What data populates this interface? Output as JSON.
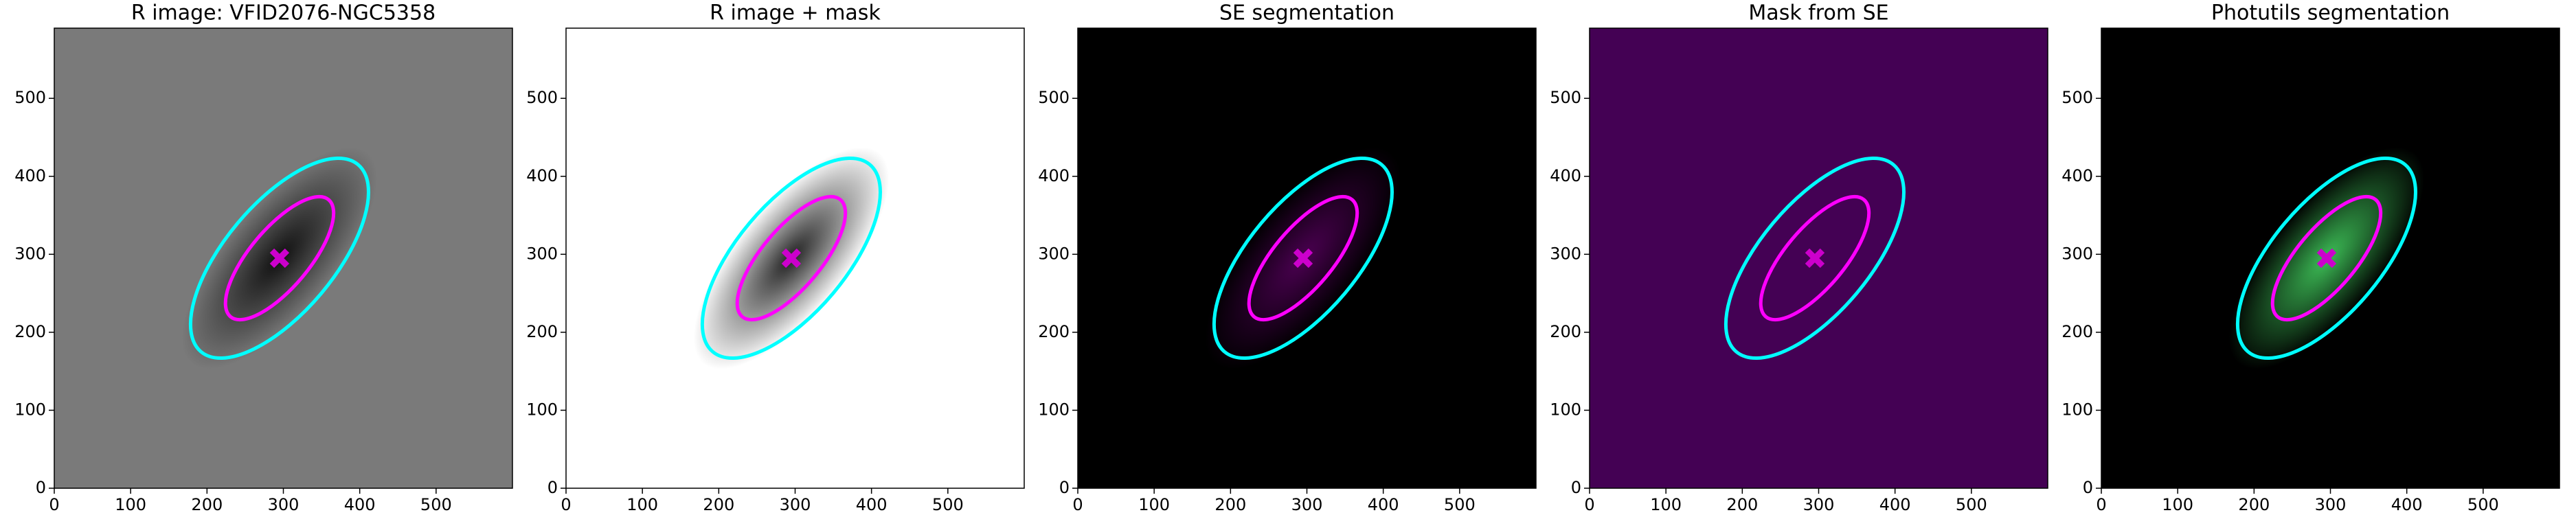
{
  "chart_data": [
    {
      "type": "image",
      "title": "R image: VFID2076-NGC5358",
      "background": "#7a7a7a",
      "glow": "#111111",
      "xlim": [
        0,
        600
      ],
      "ylim": [
        0,
        590
      ],
      "xticks": [
        0,
        100,
        200,
        300,
        400,
        500
      ],
      "yticks": [
        0,
        100,
        200,
        300,
        400,
        500
      ],
      "ellipses": [
        {
          "center": [
            295,
            295
          ],
          "semi_axes": [
            160,
            70
          ],
          "angle": 50,
          "color": "#00ffff"
        },
        {
          "center": [
            295,
            295
          ],
          "semi_axes": [
            100,
            38
          ],
          "angle": 50,
          "color": "#ff00ff"
        }
      ],
      "marker": {
        "x": 295,
        "y": 295,
        "color": "#cc00cc"
      }
    },
    {
      "type": "image",
      "title": "R image + mask",
      "background": "#ffffff",
      "glow": "#222222",
      "xlim": [
        0,
        600
      ],
      "ylim": [
        0,
        590
      ],
      "xticks": [
        0,
        100,
        200,
        300,
        400,
        500
      ],
      "yticks": [
        0,
        100,
        200,
        300,
        400,
        500
      ],
      "ellipses": [
        {
          "center": [
            295,
            295
          ],
          "semi_axes": [
            160,
            70
          ],
          "angle": 50,
          "color": "#00ffff"
        },
        {
          "center": [
            295,
            295
          ],
          "semi_axes": [
            100,
            38
          ],
          "angle": 50,
          "color": "#ff00ff"
        }
      ],
      "marker": {
        "x": 295,
        "y": 295,
        "color": "#cc00cc"
      }
    },
    {
      "type": "image",
      "title": "SE segmentation",
      "background": "#000000",
      "glow": "#4a0050",
      "xlim": [
        0,
        600
      ],
      "ylim": [
        0,
        590
      ],
      "xticks": [
        0,
        100,
        200,
        300,
        400,
        500
      ],
      "yticks": [
        0,
        100,
        200,
        300,
        400,
        500
      ],
      "ellipses": [
        {
          "center": [
            295,
            295
          ],
          "semi_axes": [
            160,
            70
          ],
          "angle": 50,
          "color": "#00ffff"
        },
        {
          "center": [
            295,
            295
          ],
          "semi_axes": [
            100,
            38
          ],
          "angle": 50,
          "color": "#ff00ff"
        }
      ],
      "marker": {
        "x": 295,
        "y": 295,
        "color": "#cc00cc"
      }
    },
    {
      "type": "image",
      "title": "Mask from SE",
      "background": "#440154",
      "glow": "#440154",
      "xlim": [
        0,
        600
      ],
      "ylim": [
        0,
        590
      ],
      "xticks": [
        0,
        100,
        200,
        300,
        400,
        500
      ],
      "yticks": [
        0,
        100,
        200,
        300,
        400,
        500
      ],
      "ellipses": [
        {
          "center": [
            295,
            295
          ],
          "semi_axes": [
            160,
            70
          ],
          "angle": 50,
          "color": "#00ffff"
        },
        {
          "center": [
            295,
            295
          ],
          "semi_axes": [
            100,
            38
          ],
          "angle": 50,
          "color": "#ff00ff"
        }
      ],
      "marker": {
        "x": 295,
        "y": 295,
        "color": "#cc00cc"
      }
    },
    {
      "type": "image",
      "title": "Photutils segmentation",
      "background": "#000000",
      "glow": "#3cbb55",
      "xlim": [
        0,
        600
      ],
      "ylim": [
        0,
        590
      ],
      "xticks": [
        0,
        100,
        200,
        300,
        400,
        500
      ],
      "yticks": [
        0,
        100,
        200,
        300,
        400,
        500
      ],
      "ellipses": [
        {
          "center": [
            295,
            295
          ],
          "semi_axes": [
            160,
            70
          ],
          "angle": 50,
          "color": "#00ffff"
        },
        {
          "center": [
            295,
            295
          ],
          "semi_axes": [
            100,
            38
          ],
          "angle": 50,
          "color": "#ff00ff"
        }
      ],
      "marker": {
        "x": 295,
        "y": 295,
        "color": "#cc00cc"
      }
    }
  ]
}
